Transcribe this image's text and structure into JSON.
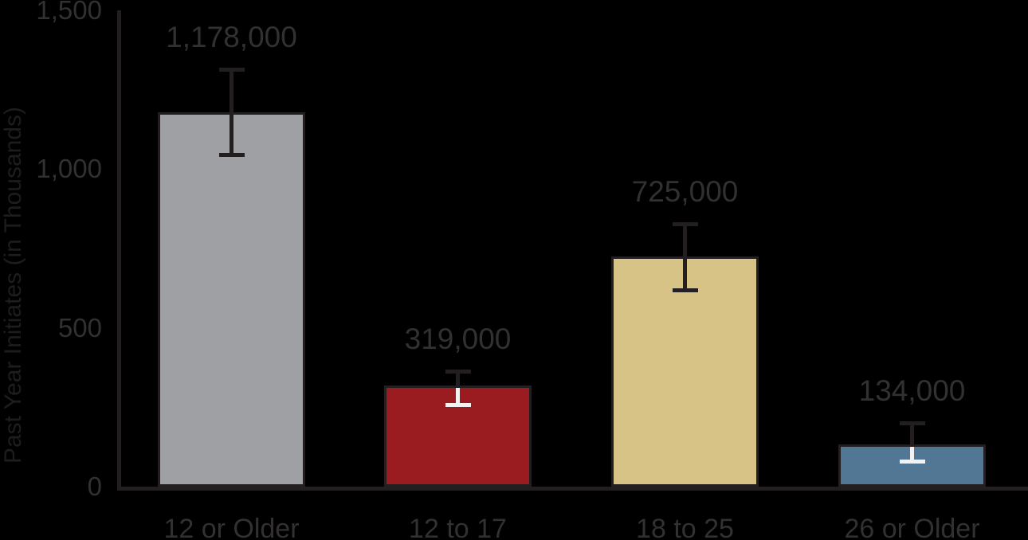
{
  "chart_data": {
    "type": "bar",
    "categories": [
      "12 or Older",
      "12 to 17",
      "18 to 25",
      "26 or Older"
    ],
    "values": [
      1178,
      319,
      725,
      134
    ],
    "value_labels": [
      "1,178,000",
      "319,000",
      "725,000",
      "134,000"
    ],
    "error_low": [
      1052,
      263,
      624,
      85
    ],
    "error_high": [
      1320,
      368,
      834,
      205
    ],
    "bar_colors": [
      "#9fa0a4",
      "#9a1c20",
      "#d7c386",
      "#527795"
    ],
    "bar_is_dark": [
      false,
      true,
      false,
      true
    ],
    "title": "",
    "xlabel": "",
    "ylabel": "Past Year Initiates (in Thousands)",
    "yticks": [
      0,
      500,
      1000,
      1500
    ],
    "ytick_labels": [
      "0",
      "500",
      "1,000",
      "1,500"
    ],
    "ylim": [
      0,
      1500
    ],
    "grid": false,
    "legend": false,
    "error_bars": true
  },
  "colors": {
    "background": "#000000",
    "axis_line": "#231f20",
    "bar_outline": "#231f20",
    "text": "#323031",
    "y_title_text": "#1f1c1d",
    "error_bar": "#231f20",
    "error_bar_on_dark_bar": "#f4f2f0"
  }
}
